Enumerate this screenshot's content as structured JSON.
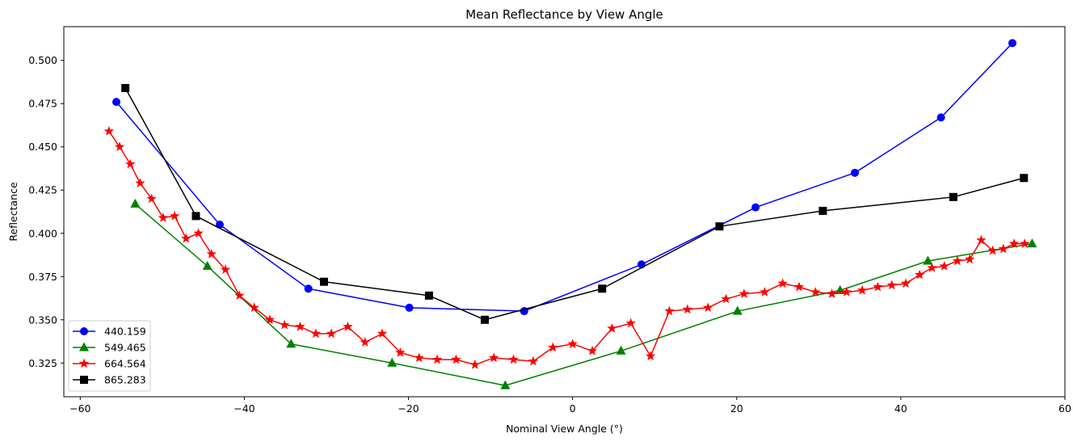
{
  "chart_data": {
    "type": "line",
    "title": "Mean Reflectance by View Angle",
    "xlabel": "Nominal View Angle (°)",
    "ylabel": "Reflectance",
    "xlim": [
      -62,
      60
    ],
    "ylim": [
      0.3055,
      0.5195
    ],
    "xticks": [
      -60,
      -40,
      -20,
      0,
      20,
      40,
      60
    ],
    "xtick_labels": [
      "−60",
      "−40",
      "−20",
      "0",
      "20",
      "40",
      "60"
    ],
    "yticks": [
      0.325,
      0.35,
      0.375,
      0.4,
      0.425,
      0.45,
      0.475,
      0.5
    ],
    "ytick_labels": [
      "0.325",
      "0.350",
      "0.375",
      "0.400",
      "0.425",
      "0.450",
      "0.475",
      "0.500"
    ],
    "grid": false,
    "legend_position": "lower-left",
    "series": [
      {
        "name": "440.159",
        "color": "#0000ff",
        "marker": "circle",
        "x": [
          -55.6,
          -43.0,
          -32.2,
          -19.9,
          -5.9,
          8.4,
          22.3,
          34.4,
          44.9,
          53.6
        ],
        "y": [
          0.476,
          0.405,
          0.368,
          0.357,
          0.355,
          0.382,
          0.415,
          0.435,
          0.467,
          0.51
        ]
      },
      {
        "name": "549.465",
        "color": "#008000",
        "marker": "triangle",
        "x": [
          -53.3,
          -44.5,
          -34.3,
          -22.0,
          -8.2,
          5.9,
          20.1,
          32.6,
          43.3,
          56.0
        ],
        "y": [
          0.417,
          0.381,
          0.336,
          0.325,
          0.312,
          0.332,
          0.355,
          0.367,
          0.384,
          0.394
        ]
      },
      {
        "name": "664.564",
        "color": "#ff0000",
        "marker": "star",
        "x": [
          -56.5,
          -55.2,
          -53.9,
          -52.7,
          -51.3,
          -49.9,
          -48.5,
          -47.1,
          -45.6,
          -44.0,
          -42.3,
          -40.6,
          -38.8,
          -36.9,
          -35.1,
          -33.2,
          -31.3,
          -29.4,
          -27.4,
          -25.3,
          -23.2,
          -21.0,
          -18.7,
          -16.5,
          -14.2,
          -11.9,
          -9.6,
          -7.2,
          -4.8,
          -2.4,
          0.0,
          2.4,
          4.8,
          7.1,
          9.5,
          11.8,
          14.0,
          16.5,
          18.7,
          20.9,
          23.4,
          25.6,
          27.6,
          29.6,
          31.6,
          33.4,
          35.3,
          37.2,
          38.9,
          40.6,
          42.3,
          43.8,
          45.3,
          46.9,
          48.4,
          49.8,
          51.2,
          52.5,
          53.8,
          55.1
        ],
        "y": [
          0.459,
          0.45,
          0.44,
          0.429,
          0.42,
          0.409,
          0.41,
          0.397,
          0.4,
          0.388,
          0.379,
          0.364,
          0.357,
          0.35,
          0.347,
          0.346,
          0.342,
          0.342,
          0.346,
          0.337,
          0.342,
          0.331,
          0.328,
          0.327,
          0.327,
          0.324,
          0.328,
          0.327,
          0.326,
          0.334,
          0.336,
          0.332,
          0.345,
          0.348,
          0.329,
          0.355,
          0.356,
          0.357,
          0.362,
          0.365,
          0.366,
          0.371,
          0.369,
          0.366,
          0.365,
          0.366,
          0.367,
          0.369,
          0.37,
          0.371,
          0.376,
          0.38,
          0.381,
          0.384,
          0.385,
          0.396,
          0.39,
          0.391,
          0.394,
          0.394
        ]
      },
      {
        "name": "865.283",
        "color": "#000000",
        "marker": "square",
        "x": [
          -54.5,
          -45.9,
          -30.3,
          -17.5,
          -10.7,
          3.6,
          17.9,
          30.5,
          46.4,
          55.0
        ],
        "y": [
          0.484,
          0.41,
          0.372,
          0.364,
          0.35,
          0.368,
          0.404,
          0.413,
          0.421,
          0.432
        ]
      }
    ]
  }
}
